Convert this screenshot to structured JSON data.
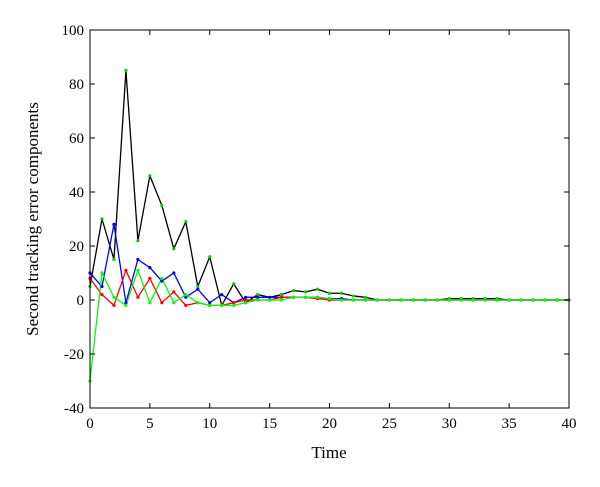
{
  "chart_data": {
    "type": "line",
    "title": "",
    "xlabel": "Time",
    "ylabel": "Second tracking error components",
    "xlim": [
      0,
      40
    ],
    "ylim": [
      -40,
      100
    ],
    "xticks": [
      0,
      5,
      10,
      15,
      20,
      25,
      30,
      35,
      40
    ],
    "yticks": [
      -40,
      -20,
      0,
      20,
      40,
      60,
      80,
      100
    ],
    "grid": false,
    "x": [
      0,
      1,
      2,
      3,
      4,
      5,
      6,
      7,
      8,
      9,
      10,
      11,
      12,
      13,
      14,
      15,
      16,
      17,
      18,
      19,
      20,
      21,
      22,
      23,
      24,
      25,
      26,
      27,
      28,
      29,
      30,
      31,
      32,
      33,
      34,
      35,
      36,
      37,
      38,
      39,
      40
    ],
    "series": [
      {
        "color": "#000000",
        "marker_color": "#00cc00",
        "values": [
          5,
          30,
          15,
          85,
          22,
          46,
          35,
          19,
          29,
          5,
          16,
          -2,
          6,
          -1,
          2,
          1,
          2,
          3.5,
          3,
          4,
          2.5,
          2.5,
          1.5,
          1,
          0,
          0,
          0,
          0,
          0,
          0,
          0.5,
          0.5,
          0.5,
          0.5,
          0.5,
          0,
          0,
          0,
          0,
          0,
          0
        ]
      },
      {
        "color": "#0000ff",
        "marker_color": "#0000ff",
        "values": [
          10,
          5,
          28,
          -1,
          15,
          12,
          7,
          10,
          1,
          4,
          -1,
          2,
          -1,
          1,
          1,
          1,
          1,
          1,
          1,
          1,
          0.5,
          0.5,
          0,
          0,
          0,
          0,
          0,
          0,
          0,
          0,
          0,
          0,
          0,
          0,
          0,
          0,
          0,
          0,
          0,
          0,
          0
        ]
      },
      {
        "color": "#ff0000",
        "marker_color": "#ff0000",
        "values": [
          8,
          2,
          -2,
          11,
          1,
          8,
          -1,
          3,
          -2,
          -1,
          -2,
          -2,
          -1,
          0,
          0,
          0,
          1,
          1,
          1,
          0.5,
          0,
          0,
          0,
          0,
          0,
          0,
          0,
          0,
          0,
          0,
          0,
          0,
          0,
          0,
          0,
          0,
          0,
          0,
          0,
          0,
          0
        ]
      },
      {
        "color": "#00ff00",
        "marker_color": "#00ff00",
        "values": [
          -30,
          10,
          1,
          -2,
          11,
          -1,
          8,
          -1,
          2,
          -1,
          -2,
          -2,
          -2,
          -1,
          0,
          0,
          0,
          1,
          1,
          1,
          0.5,
          0,
          0,
          0,
          0,
          0,
          0,
          0,
          0,
          0,
          0,
          0,
          0,
          0,
          0,
          0,
          0,
          0,
          0,
          0,
          0
        ]
      }
    ]
  }
}
